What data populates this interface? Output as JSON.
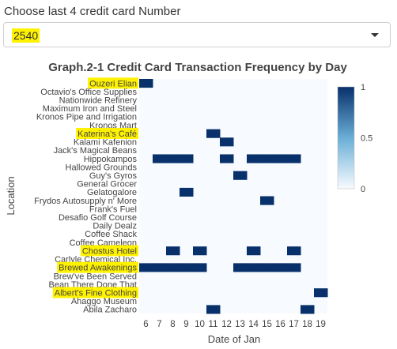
{
  "control": {
    "label": "Choose last 4 credit card Number",
    "selected": "2540"
  },
  "chart_data": {
    "type": "heatmap",
    "title": "Graph.2-1 Credit Card Transaction Frequency by Day",
    "xlabel": "Date of Jan",
    "ylabel": "Location",
    "x": [
      6,
      7,
      8,
      9,
      10,
      11,
      12,
      13,
      14,
      15,
      16,
      17,
      18,
      19
    ],
    "y": [
      "Ouzeri Elian",
      "Octavio's Office Supplies",
      "Nationwide Refinery",
      "Maximum Iron and Steel",
      "Kronos Pipe and Irrigation",
      "Kronos Mart",
      "Katerina's Café",
      "Kalami Kafenion",
      "Jack's Magical Beans",
      "Hippokampos",
      "Hallowed Grounds",
      "Guy's Gyros",
      "General Grocer",
      "Gelatogalore",
      "Frydos Autosupply n' More",
      "Frank's Fuel",
      "Desafio Golf Course",
      "Daily Dealz",
      "Coffee Shack",
      "Coffee Cameleon",
      "Chostus Hotel",
      "Carlyle Chemical Inc.",
      "Brewed Awakenings",
      "Brew've Been Served",
      "Bean There Done That",
      "Albert's Fine Clothing",
      "Ahaggo Museum",
      "Abila Zacharo"
    ],
    "highlighted_locations": [
      "Ouzeri Elian",
      "Katerina's Café",
      "Chostus Hotel",
      "Brewed Awakenings",
      "Albert's Fine Clothing"
    ],
    "cells": [
      {
        "location": "Ouzeri Elian",
        "days": [
          6
        ]
      },
      {
        "location": "Katerina's Café",
        "days": [
          11
        ]
      },
      {
        "location": "Kalami Kafenion",
        "days": [
          12
        ]
      },
      {
        "location": "Hippokampos",
        "days": [
          7,
          8,
          9,
          12,
          14,
          15,
          16,
          17
        ]
      },
      {
        "location": "Guy's Gyros",
        "days": [
          13
        ]
      },
      {
        "location": "Gelatogalore",
        "days": [
          9
        ]
      },
      {
        "location": "Frydos Autosupply n' More",
        "days": [
          15
        ]
      },
      {
        "location": "Chostus Hotel",
        "days": [
          8,
          10,
          14,
          17
        ]
      },
      {
        "location": "Brewed Awakenings",
        "days": [
          6,
          7,
          8,
          9,
          10,
          13,
          14,
          15,
          16,
          17
        ]
      },
      {
        "location": "Albert's Fine Clothing",
        "days": [
          19
        ]
      },
      {
        "location": "Abila Zacharo",
        "days": [
          11,
          18
        ]
      }
    ],
    "value_range": [
      0,
      1
    ],
    "colorbar_ticks": [
      "0",
      "0.5",
      "1"
    ],
    "colors": {
      "low": "#f7fbff",
      "high": "#08306b",
      "highlight": "#fff200"
    }
  }
}
